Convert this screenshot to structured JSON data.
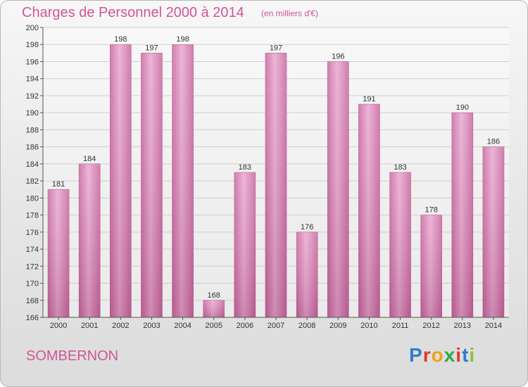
{
  "header": {
    "title": "Charges de Personnel 2000 à 2014",
    "subtitle": "(en milliers d'€)"
  },
  "footer": {
    "city": "SOMBERNON",
    "logo_text": "Proxiti",
    "logo_colors": [
      "#2f7fc9",
      "#e0382f",
      "#f0a11e",
      "#2ea84a",
      "#e0382f",
      "#2f7fc9",
      "#8fbf3a"
    ]
  },
  "chart_data": {
    "type": "bar",
    "title": "Charges de Personnel 2000 à 2014",
    "subtitle": "(en milliers d'€)",
    "categories": [
      "2000",
      "2001",
      "2002",
      "2003",
      "2004",
      "2005",
      "2006",
      "2007",
      "2008",
      "2009",
      "2010",
      "2011",
      "2012",
      "2013",
      "2014"
    ],
    "values": [
      181,
      184,
      198,
      197,
      198,
      168,
      183,
      197,
      176,
      196,
      191,
      183,
      178,
      190,
      186
    ],
    "ylim": [
      166,
      200
    ],
    "yticks": [
      166,
      168,
      170,
      172,
      174,
      176,
      178,
      180,
      182,
      184,
      186,
      188,
      190,
      192,
      194,
      196,
      198,
      200
    ],
    "grid": true,
    "bar_color": "#d887b8"
  }
}
